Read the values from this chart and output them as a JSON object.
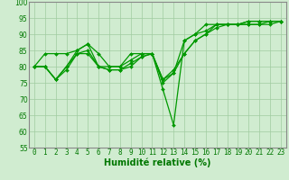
{
  "series": [
    [
      80,
      84,
      84,
      84,
      85,
      87,
      84,
      80,
      80,
      84,
      84,
      84,
      75,
      78,
      88,
      90,
      91,
      93,
      93,
      93,
      94,
      94,
      94,
      94
    ],
    [
      80,
      80,
      76,
      80,
      85,
      87,
      80,
      80,
      80,
      82,
      84,
      84,
      73,
      62,
      88,
      90,
      93,
      93,
      93,
      93,
      94,
      94,
      94,
      94
    ],
    [
      80,
      80,
      76,
      80,
      84,
      85,
      80,
      79,
      79,
      81,
      83,
      84,
      76,
      78,
      84,
      88,
      90,
      93,
      93,
      93,
      93,
      93,
      94,
      94
    ],
    [
      80,
      80,
      76,
      79,
      84,
      84,
      80,
      79,
      79,
      80,
      83,
      84,
      76,
      79,
      84,
      88,
      90,
      92,
      93,
      93,
      93,
      93,
      93,
      94
    ]
  ],
  "x": [
    0,
    1,
    2,
    3,
    4,
    5,
    6,
    7,
    8,
    9,
    10,
    11,
    12,
    13,
    14,
    15,
    16,
    17,
    18,
    19,
    20,
    21,
    22,
    23
  ],
  "xlabel": "Humidité relative (%)",
  "xlim": [
    -0.5,
    23.5
  ],
  "ylim": [
    55,
    100
  ],
  "yticks": [
    55,
    60,
    65,
    70,
    75,
    80,
    85,
    90,
    95,
    100
  ],
  "xtick_labels": [
    "0",
    "1",
    "2",
    "3",
    "4",
    "5",
    "6",
    "7",
    "8",
    "9",
    "10",
    "11",
    "12",
    "13",
    "14",
    "15",
    "16",
    "17",
    "18",
    "19",
    "20",
    "21",
    "22",
    "23"
  ],
  "bg_color": "#d0ecd0",
  "grid_color": "#a0cca0",
  "line_color": "#009900",
  "marker": "D",
  "marker_size": 2.0,
  "lw": 0.9,
  "xlabel_color": "#007700",
  "tick_color": "#007700",
  "xlabel_fontsize": 7.0,
  "tick_fontsize": 5.5,
  "spine_color": "#888888"
}
